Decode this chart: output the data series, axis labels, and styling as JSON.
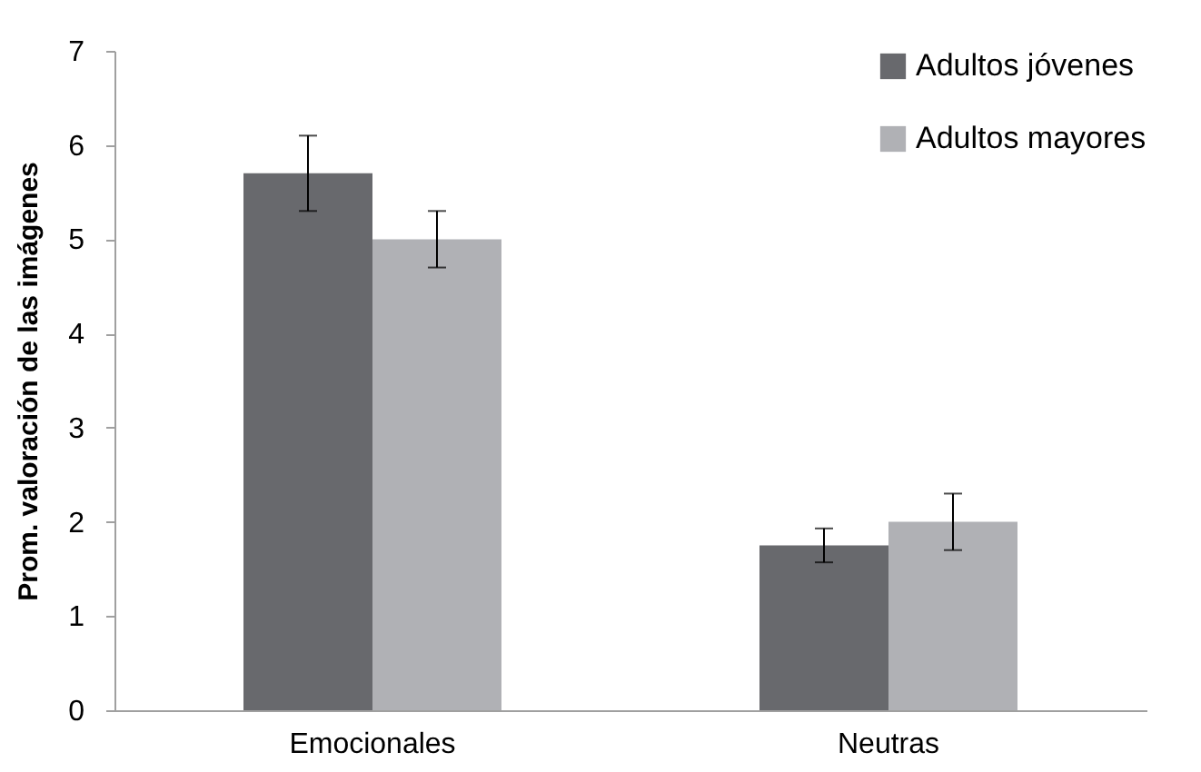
{
  "chart_data": {
    "type": "bar",
    "ylabel": "Prom. valoración de las imágenes",
    "categories": [
      "Emocionales",
      "Neutras"
    ],
    "series": [
      {
        "name": "Adultos jóvenes",
        "color": "#68696d",
        "values": [
          5.7,
          1.75
        ],
        "errors": [
          0.4,
          0.18
        ]
      },
      {
        "name": "Adultos mayores",
        "color": "#b0b1b5",
        "values": [
          5.0,
          2.0
        ],
        "errors": [
          0.3,
          0.3
        ]
      }
    ],
    "ylim": [
      0,
      7
    ],
    "yticks": [
      0,
      1,
      2,
      3,
      4,
      5,
      6,
      7
    ],
    "grid": false,
    "legend": "top right"
  }
}
